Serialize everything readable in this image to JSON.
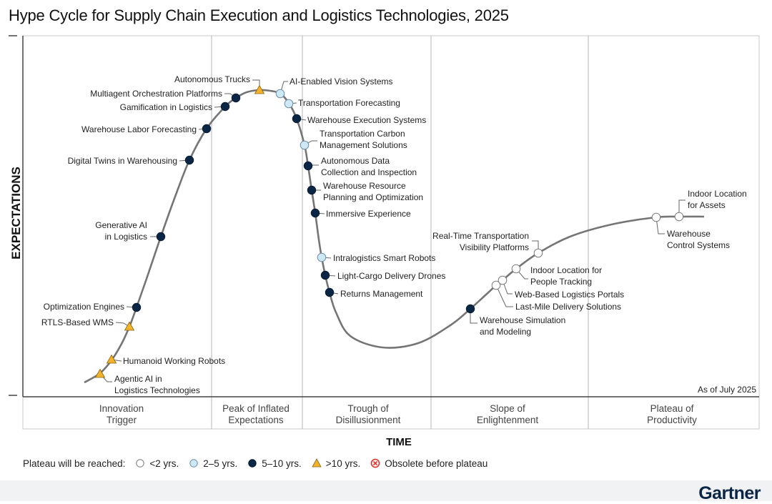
{
  "chart_data": {
    "type": "hype-cycle",
    "title": "Hype Cycle for Supply Chain Execution and Logistics Technologies, 2025",
    "xlabel": "TIME",
    "ylabel": "EXPECTATIONS",
    "as_of": "As of July 2025",
    "phases": [
      {
        "name": "Innovation Trigger",
        "lines": [
          "Innovation",
          "Trigger"
        ]
      },
      {
        "name": "Peak of Inflated Expectations",
        "lines": [
          "Peak of Inflated",
          "Expectations"
        ]
      },
      {
        "name": "Trough of Disillusionment",
        "lines": [
          "Trough of",
          "Disillusionment"
        ]
      },
      {
        "name": "Slope of Enlightenment",
        "lines": [
          "Slope of",
          "Enlightenment"
        ]
      },
      {
        "name": "Plateau of Productivity",
        "lines": [
          "Plateau of",
          "Productivity"
        ]
      }
    ],
    "legend": {
      "title": "Plateau will be reached:",
      "items": [
        {
          "key": "lt2",
          "label": "<2 yrs."
        },
        {
          "key": "2to5",
          "label": "2–5 yrs."
        },
        {
          "key": "5to10",
          "label": "5–10 yrs."
        },
        {
          "key": "gt10",
          "label": ">10 yrs."
        },
        {
          "key": "obsolete",
          "label": "Obsolete before plateau"
        }
      ]
    },
    "technologies": [
      {
        "name": "Agentic AI in Logistics Technologies",
        "lines": [
          "Agentic AI in",
          "Logistics Technologies"
        ],
        "category": "gt10",
        "phase": "Innovation Trigger"
      },
      {
        "name": "Humanoid Working Robots",
        "lines": [
          "Humanoid Working Robots"
        ],
        "category": "gt10",
        "phase": "Innovation Trigger"
      },
      {
        "name": "RTLS-Based WMS",
        "lines": [
          "RTLS-Based WMS"
        ],
        "category": "gt10",
        "phase": "Innovation Trigger"
      },
      {
        "name": "Optimization Engines",
        "lines": [
          "Optimization Engines"
        ],
        "category": "5to10",
        "phase": "Innovation Trigger"
      },
      {
        "name": "Generative AI in Logistics",
        "lines": [
          "Generative AI",
          "in Logistics"
        ],
        "category": "5to10",
        "phase": "Innovation Trigger"
      },
      {
        "name": "Digital Twins in Warehousing",
        "lines": [
          "Digital Twins in Warehousing"
        ],
        "category": "5to10",
        "phase": "Innovation Trigger"
      },
      {
        "name": "Warehouse Labor Forecasting",
        "lines": [
          "Warehouse Labor Forecasting"
        ],
        "category": "5to10",
        "phase": "Peak of Inflated Expectations"
      },
      {
        "name": "Gamification in Logistics",
        "lines": [
          "Gamification in Logistics"
        ],
        "category": "5to10",
        "phase": "Peak of Inflated Expectations"
      },
      {
        "name": "Multiagent Orchestration Platforms",
        "lines": [
          "Multiagent Orchestration Platforms"
        ],
        "category": "5to10",
        "phase": "Peak of Inflated Expectations"
      },
      {
        "name": "Autonomous Trucks",
        "lines": [
          "Autonomous Trucks"
        ],
        "category": "gt10",
        "phase": "Peak of Inflated Expectations"
      },
      {
        "name": "AI-Enabled Vision Systems",
        "lines": [
          "AI-Enabled Vision Systems"
        ],
        "category": "2to5",
        "phase": "Peak of Inflated Expectations"
      },
      {
        "name": "Transportation Forecasting",
        "lines": [
          "Transportation Forecasting"
        ],
        "category": "2to5",
        "phase": "Peak of Inflated Expectations"
      },
      {
        "name": "Warehouse Execution Systems",
        "lines": [
          "Warehouse Execution Systems"
        ],
        "category": "5to10",
        "phase": "Trough of Disillusionment"
      },
      {
        "name": "Transportation Carbon Management Solutions",
        "lines": [
          "Transportation Carbon",
          "Management Solutions"
        ],
        "category": "2to5",
        "phase": "Trough of Disillusionment"
      },
      {
        "name": "Autonomous Data Collection and Inspection",
        "lines": [
          "Autonomous Data",
          "Collection and Inspection"
        ],
        "category": "5to10",
        "phase": "Trough of Disillusionment"
      },
      {
        "name": "Warehouse Resource Planning and Optimization",
        "lines": [
          "Warehouse Resource",
          "Planning and Optimization"
        ],
        "category": "5to10",
        "phase": "Trough of Disillusionment"
      },
      {
        "name": "Immersive Experience",
        "lines": [
          "Immersive Experience"
        ],
        "category": "5to10",
        "phase": "Trough of Disillusionment"
      },
      {
        "name": "Intralogistics Smart Robots",
        "lines": [
          "Intralogistics Smart Robots"
        ],
        "category": "2to5",
        "phase": "Trough of Disillusionment"
      },
      {
        "name": "Light-Cargo Delivery Drones",
        "lines": [
          "Light-Cargo Delivery Drones"
        ],
        "category": "5to10",
        "phase": "Trough of Disillusionment"
      },
      {
        "name": "Returns Management",
        "lines": [
          "Returns Management"
        ],
        "category": "5to10",
        "phase": "Trough of Disillusionment"
      },
      {
        "name": "Warehouse Simulation and Modeling",
        "lines": [
          "Warehouse Simulation",
          "and Modeling"
        ],
        "category": "5to10",
        "phase": "Slope of Enlightenment"
      },
      {
        "name": "Last-Mile Delivery Solutions",
        "lines": [
          "Last-Mile Delivery Solutions"
        ],
        "category": "lt2",
        "phase": "Slope of Enlightenment"
      },
      {
        "name": "Web-Based Logistics Portals",
        "lines": [
          "Web-Based Logistics Portals"
        ],
        "category": "lt2",
        "phase": "Slope of Enlightenment"
      },
      {
        "name": "Indoor Location for People Tracking",
        "lines": [
          "Indoor Location for",
          "People Tracking"
        ],
        "category": "lt2",
        "phase": "Slope of Enlightenment"
      },
      {
        "name": "Real-Time Transportation Visibility Platforms",
        "lines": [
          "Real-Time Transportation",
          "Visibility Platforms"
        ],
        "category": "lt2",
        "phase": "Slope of Enlightenment"
      },
      {
        "name": "Warehouse Control Systems",
        "lines": [
          "Warehouse",
          "Control Systems"
        ],
        "category": "lt2",
        "phase": "Plateau of Productivity"
      },
      {
        "name": "Indoor Location for Assets",
        "lines": [
          "Indoor Location",
          "for Assets"
        ],
        "category": "lt2",
        "phase": "Plateau of Productivity"
      }
    ],
    "colors": {
      "lt2": "#ffffff",
      "2to5": "#cfe8f5",
      "5to10": "#0b2545",
      "gt10": "#f2b32c",
      "obsolete": "#e0312b",
      "curve": "#757575",
      "divider": "#b5b5b5"
    }
  },
  "brand": "Gartner"
}
